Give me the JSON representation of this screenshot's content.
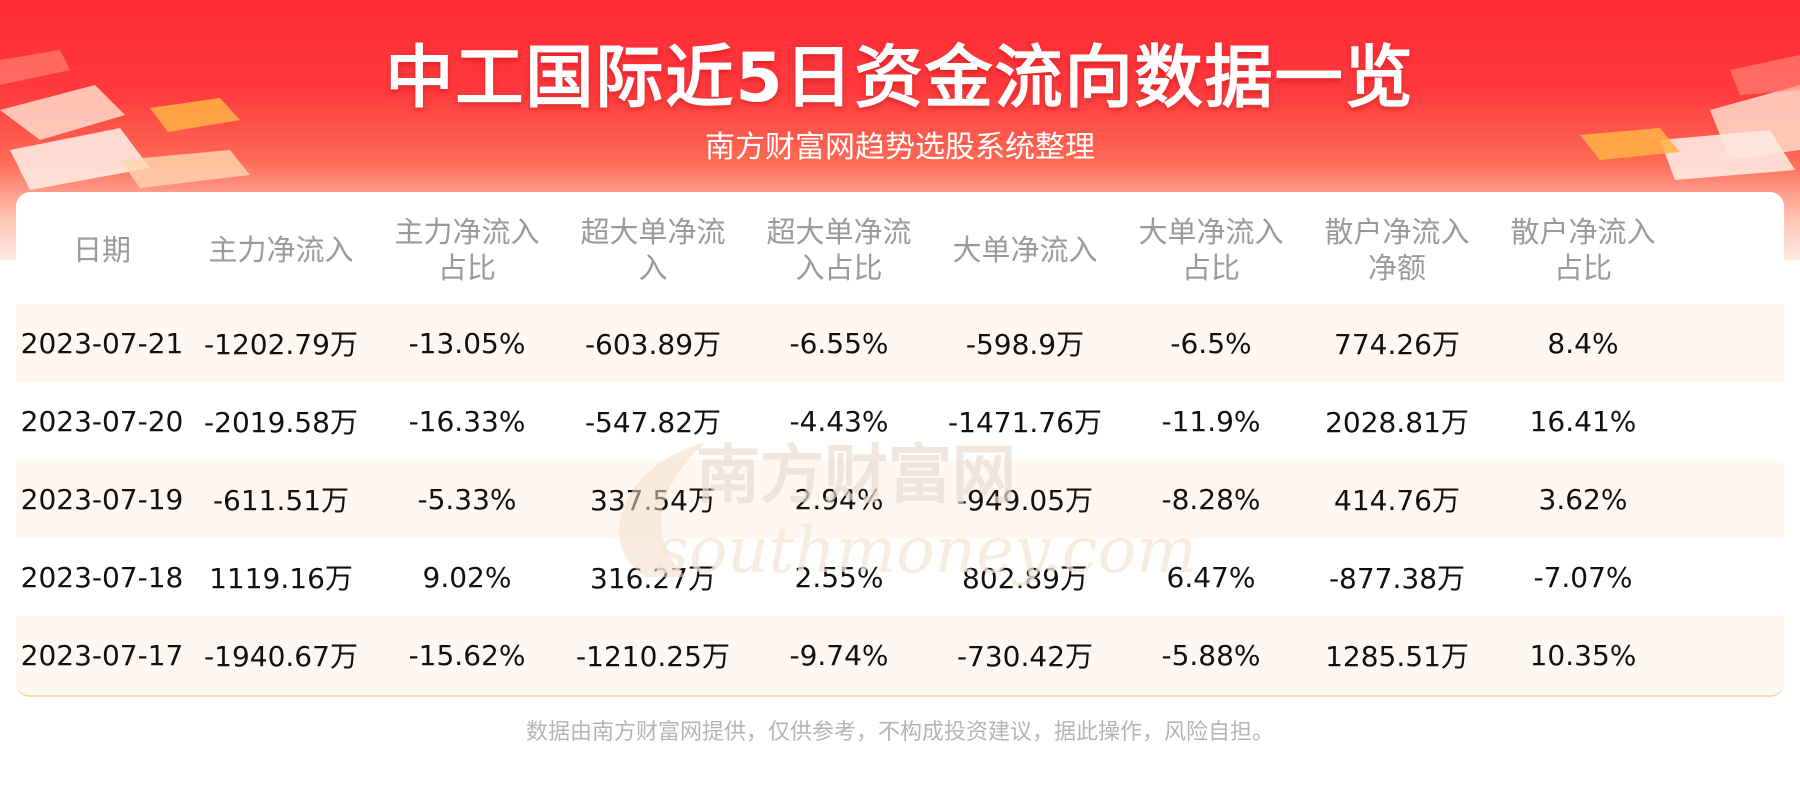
{
  "header": {
    "title": "中工国际近5日资金流向数据一览",
    "subtitle": "南方财富网趋势选股系统整理"
  },
  "watermark": {
    "brand": "南方财富网",
    "domain": "southmoney.com"
  },
  "table": {
    "columns": [
      [
        "日期"
      ],
      [
        "主力净流入"
      ],
      [
        "主力净流入",
        "占比"
      ],
      [
        "超大单净流",
        "入"
      ],
      [
        "超大单净流",
        "入占比"
      ],
      [
        "大单净流入"
      ],
      [
        "大单净流入",
        "占比"
      ],
      [
        "散户净流入",
        "净额"
      ],
      [
        "散户净流入",
        "占比"
      ]
    ],
    "rows": [
      [
        "2023-07-21",
        "-1202.79万",
        "-13.05%",
        "-603.89万",
        "-6.55%",
        "-598.9万",
        "-6.5%",
        "774.26万",
        "8.4%"
      ],
      [
        "2023-07-20",
        "-2019.58万",
        "-16.33%",
        "-547.82万",
        "-4.43%",
        "-1471.76万",
        "-11.9%",
        "2028.81万",
        "16.41%"
      ],
      [
        "2023-07-19",
        "-611.51万",
        "-5.33%",
        "337.54万",
        "2.94%",
        "-949.05万",
        "-8.28%",
        "414.76万",
        "3.62%"
      ],
      [
        "2023-07-18",
        "1119.16万",
        "9.02%",
        "316.27万",
        "2.55%",
        "802.89万",
        "6.47%",
        "-877.38万",
        "-7.07%"
      ],
      [
        "2023-07-17",
        "-1940.67万",
        "-15.62%",
        "-1210.25万",
        "-9.74%",
        "-730.42万",
        "-5.88%",
        "1285.51万",
        "10.35%"
      ]
    ]
  },
  "footer": {
    "disclaimer": "数据由南方财富网提供，仅供参考，不构成投资建议，据此操作，风险自担。"
  },
  "colors": {
    "banner_red": "#ff2a35",
    "alt_row": "#fff8f2",
    "header_text": "#9a9a9a",
    "footer_text": "#b4b4b4"
  }
}
